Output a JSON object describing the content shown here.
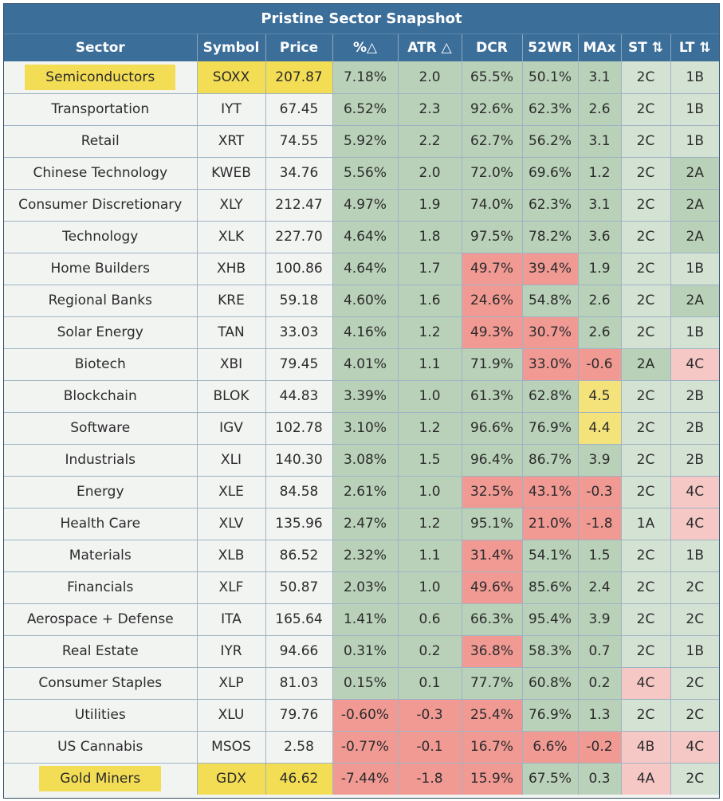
{
  "chart_data": {
    "type": "table",
    "title": "Pristine Sector Snapshot",
    "columns": [
      "Sector",
      "Symbol",
      "Price",
      "%△",
      "ATR △",
      "DCR",
      "52WR",
      "MAx",
      "ST ⇅",
      "LT ⇅"
    ],
    "rows": [
      {
        "sector": "Semiconductors",
        "symbol": "SOXX",
        "price": "207.87",
        "pct": "7.18%",
        "atr": "2.0",
        "dcr": "65.5%",
        "wr52": "50.1%",
        "max": "3.1",
        "st": "2C",
        "lt": "1B",
        "highlight": true
      },
      {
        "sector": "Transportation",
        "symbol": "IYT",
        "price": "67.45",
        "pct": "6.52%",
        "atr": "2.3",
        "dcr": "92.6%",
        "wr52": "62.3%",
        "max": "2.6",
        "st": "2C",
        "lt": "1B"
      },
      {
        "sector": "Retail",
        "symbol": "XRT",
        "price": "74.55",
        "pct": "5.92%",
        "atr": "2.2",
        "dcr": "62.7%",
        "wr52": "56.2%",
        "max": "3.1",
        "st": "2C",
        "lt": "1B"
      },
      {
        "sector": "Chinese Technology",
        "symbol": "KWEB",
        "price": "34.76",
        "pct": "5.56%",
        "atr": "2.0",
        "dcr": "72.0%",
        "wr52": "69.6%",
        "max": "1.2",
        "st": "2C",
        "lt": "2A"
      },
      {
        "sector": "Consumer Discretionary",
        "symbol": "XLY",
        "price": "212.47",
        "pct": "4.97%",
        "atr": "1.9",
        "dcr": "74.0%",
        "wr52": "62.3%",
        "max": "3.1",
        "st": "2C",
        "lt": "2A"
      },
      {
        "sector": "Technology",
        "symbol": "XLK",
        "price": "227.70",
        "pct": "4.64%",
        "atr": "1.8",
        "dcr": "97.5%",
        "wr52": "78.2%",
        "max": "3.6",
        "st": "2C",
        "lt": "2A"
      },
      {
        "sector": "Home Builders",
        "symbol": "XHB",
        "price": "100.86",
        "pct": "4.64%",
        "atr": "1.7",
        "dcr": "49.7%",
        "wr52": "39.4%",
        "max": "1.9",
        "st": "2C",
        "lt": "1B"
      },
      {
        "sector": "Regional Banks",
        "symbol": "KRE",
        "price": "59.18",
        "pct": "4.60%",
        "atr": "1.6",
        "dcr": "24.6%",
        "wr52": "54.8%",
        "max": "2.6",
        "st": "2C",
        "lt": "2A"
      },
      {
        "sector": "Solar Energy",
        "symbol": "TAN",
        "price": "33.03",
        "pct": "4.16%",
        "atr": "1.2",
        "dcr": "49.3%",
        "wr52": "30.7%",
        "max": "2.6",
        "st": "2C",
        "lt": "1B"
      },
      {
        "sector": "Biotech",
        "symbol": "XBI",
        "price": "79.45",
        "pct": "4.01%",
        "atr": "1.1",
        "dcr": "71.9%",
        "wr52": "33.0%",
        "max": "-0.6",
        "st": "2A",
        "lt": "4C"
      },
      {
        "sector": "Blockchain",
        "symbol": "BLOK",
        "price": "44.83",
        "pct": "3.39%",
        "atr": "1.0",
        "dcr": "61.3%",
        "wr52": "62.8%",
        "max": "4.5",
        "st": "2C",
        "lt": "2B"
      },
      {
        "sector": "Software",
        "symbol": "IGV",
        "price": "102.78",
        "pct": "3.10%",
        "atr": "1.2",
        "dcr": "96.6%",
        "wr52": "76.9%",
        "max": "4.4",
        "st": "2C",
        "lt": "2B"
      },
      {
        "sector": "Industrials",
        "symbol": "XLI",
        "price": "140.30",
        "pct": "3.08%",
        "atr": "1.5",
        "dcr": "96.4%",
        "wr52": "86.7%",
        "max": "3.9",
        "st": "2C",
        "lt": "2B"
      },
      {
        "sector": "Energy",
        "symbol": "XLE",
        "price": "84.58",
        "pct": "2.61%",
        "atr": "1.0",
        "dcr": "32.5%",
        "wr52": "43.1%",
        "max": "-0.3",
        "st": "2C",
        "lt": "4C"
      },
      {
        "sector": "Health Care",
        "symbol": "XLV",
        "price": "135.96",
        "pct": "2.47%",
        "atr": "1.2",
        "dcr": "95.1%",
        "wr52": "21.0%",
        "max": "-1.8",
        "st": "1A",
        "lt": "4C"
      },
      {
        "sector": "Materials",
        "symbol": "XLB",
        "price": "86.52",
        "pct": "2.32%",
        "atr": "1.1",
        "dcr": "31.4%",
        "wr52": "54.1%",
        "max": "1.5",
        "st": "2C",
        "lt": "1B"
      },
      {
        "sector": "Financials",
        "symbol": "XLF",
        "price": "50.87",
        "pct": "2.03%",
        "atr": "1.0",
        "dcr": "49.6%",
        "wr52": "85.6%",
        "max": "2.4",
        "st": "2C",
        "lt": "2C"
      },
      {
        "sector": "Aerospace + Defense",
        "symbol": "ITA",
        "price": "165.64",
        "pct": "1.41%",
        "atr": "0.6",
        "dcr": "66.3%",
        "wr52": "95.4%",
        "max": "3.9",
        "st": "2C",
        "lt": "2C"
      },
      {
        "sector": "Real Estate",
        "symbol": "IYR",
        "price": "94.66",
        "pct": "0.31%",
        "atr": "0.2",
        "dcr": "36.8%",
        "wr52": "58.3%",
        "max": "0.7",
        "st": "2C",
        "lt": "1B"
      },
      {
        "sector": "Consumer Staples",
        "symbol": "XLP",
        "price": "81.03",
        "pct": "0.15%",
        "atr": "0.1",
        "dcr": "77.7%",
        "wr52": "60.8%",
        "max": "0.2",
        "st": "4C",
        "lt": "2C"
      },
      {
        "sector": "Utilities",
        "symbol": "XLU",
        "price": "79.76",
        "pct": "-0.60%",
        "atr": "-0.3",
        "dcr": "25.4%",
        "wr52": "76.9%",
        "max": "1.3",
        "st": "2C",
        "lt": "2C"
      },
      {
        "sector": "US Cannabis",
        "symbol": "MSOS",
        "price": "2.58",
        "pct": "-0.77%",
        "atr": "-0.1",
        "dcr": "16.7%",
        "wr52": "6.6%",
        "max": "-0.2",
        "st": "4B",
        "lt": "4C"
      },
      {
        "sector": "Gold Miners",
        "symbol": "GDX",
        "price": "46.62",
        "pct": "-7.44%",
        "atr": "-1.8",
        "dcr": "15.9%",
        "wr52": "67.5%",
        "max": "0.3",
        "st": "4A",
        "lt": "2C",
        "highlight": true
      }
    ]
  },
  "colors": {
    "header": "#3c6e9a",
    "positive": "#b9d1b9",
    "negative": "#f19a94",
    "light_negative": "#f5c8c6",
    "stage_2": "#d3e2d3",
    "warning": "#f4e27a",
    "highlight": "#f3dd55"
  }
}
